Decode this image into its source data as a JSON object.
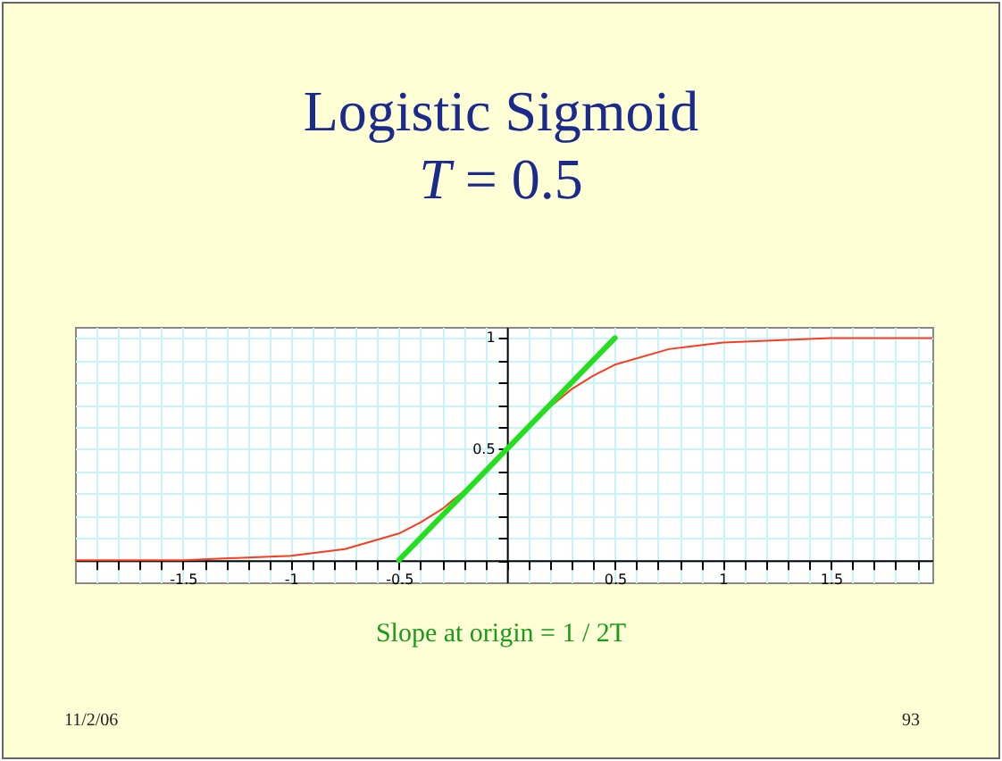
{
  "chart_data": {
    "type": "line",
    "title": "Logistic Sigmoid",
    "subtitle": "T = 0.5",
    "annotations": [
      "Slope at origin = 1 / 2T",
      "11/2/06",
      "93"
    ],
    "xlim": [
      -2,
      1.97
    ],
    "ylim": [
      -0.1,
      1.05
    ],
    "xticks": [
      {
        "value": -1.9,
        "label": null
      },
      {
        "value": -1.8,
        "label": null
      },
      {
        "value": -1.7,
        "label": null
      },
      {
        "value": -1.6,
        "label": null
      },
      -1.5,
      {
        "value": -1.4,
        "label": null
      },
      {
        "value": -1.3,
        "label": null
      },
      {
        "value": -1.2,
        "label": null
      },
      {
        "value": -1.1,
        "label": null
      },
      -1,
      {
        "value": -0.9,
        "label": null
      },
      {
        "value": -0.8,
        "label": null
      },
      {
        "value": -0.7,
        "label": null
      },
      {
        "value": -0.6,
        "label": null
      },
      -0.5,
      {
        "value": -0.4,
        "label": null
      },
      {
        "value": -0.3,
        "label": null
      },
      {
        "value": -0.2,
        "label": null
      },
      {
        "value": -0.1,
        "label": null
      },
      {
        "value": 0,
        "label": null
      },
      {
        "value": 0.1,
        "label": null
      },
      {
        "value": 0.2,
        "label": null
      },
      {
        "value": 0.3,
        "label": null
      },
      {
        "value": 0.4,
        "label": null
      },
      0.5,
      {
        "value": 0.6,
        "label": null
      },
      {
        "value": 0.7,
        "label": null
      },
      {
        "value": 0.8,
        "label": null
      },
      {
        "value": 0.9,
        "label": null
      },
      1,
      {
        "value": 1.1,
        "label": null
      },
      {
        "value": 1.2,
        "label": null
      },
      {
        "value": 1.3,
        "label": null
      },
      {
        "value": 1.4,
        "label": null
      },
      1.5,
      {
        "value": 1.6,
        "label": null
      },
      {
        "value": 1.7,
        "label": null
      },
      {
        "value": 1.8,
        "label": null
      },
      {
        "value": 1.9,
        "label": null
      }
    ],
    "yticks": [
      {
        "value": 0,
        "label": null
      },
      {
        "value": 0.1,
        "label": null
      },
      {
        "value": 0.2,
        "label": null
      },
      {
        "value": 0.3,
        "label": null
      },
      {
        "value": 0.4,
        "label": null
      },
      0.5,
      {
        "value": 0.6,
        "label": null
      },
      {
        "value": 0.7,
        "label": null
      },
      {
        "value": 0.8,
        "label": null
      },
      {
        "value": 0.9,
        "label": null
      },
      1
    ],
    "grid": true,
    "marker": "none",
    "line_style": "solid",
    "series": [
      {
        "color": "#ff3b1f",
        "x": [
          -2,
          -1.5,
          -1.25,
          -1,
          -0.75,
          -0.5,
          -0.4,
          -0.3,
          -0.2,
          -0.1,
          0,
          0.1,
          0.2,
          0.3,
          0.4,
          0.5,
          0.75,
          1,
          1.25,
          1.5,
          1.97
        ],
        "values": [
          0,
          0,
          0.01,
          0.02,
          0.05,
          0.12,
          0.17,
          0.23,
          0.31,
          0.4,
          0.5,
          0.6,
          0.69,
          0.77,
          0.83,
          0.88,
          0.95,
          0.98,
          0.99,
          1,
          1
        ]
      },
      {
        "type": "line",
        "color": "#22e01e",
        "x": [
          -0.5,
          0.5
        ],
        "values": [
          0,
          1
        ]
      }
    ]
  }
}
